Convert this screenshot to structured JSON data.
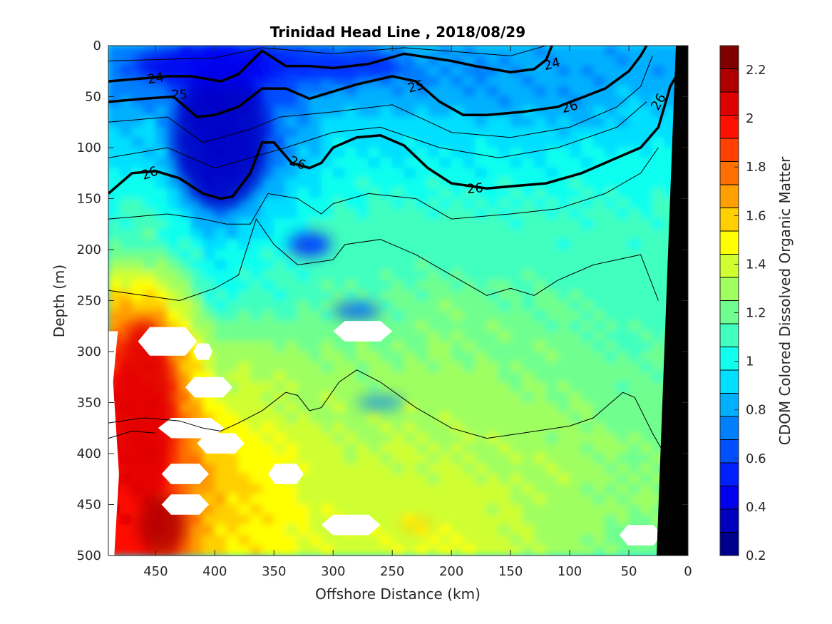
{
  "chart_data": {
    "type": "heatmap",
    "title": "Trinidad Head Line , 2018/08/29",
    "xlabel": "Offshore Distance (km)",
    "ylabel": "Depth (m)",
    "colorbar_label": "CDOM Colored Dissolved Organic Matter",
    "xlim": [
      490,
      0
    ],
    "ylim": [
      500,
      0
    ],
    "xticks": [
      450,
      400,
      350,
      300,
      250,
      200,
      150,
      100,
      50,
      0
    ],
    "yticks": [
      0,
      50,
      100,
      150,
      200,
      250,
      300,
      350,
      400,
      450,
      500
    ],
    "clim": [
      0.2,
      2.3
    ],
    "colorbar_ticks": [
      0.2,
      0.4,
      0.6,
      0.8,
      1,
      1.2,
      1.4,
      1.6,
      1.8,
      2,
      2.2
    ],
    "colormap": [
      "#00008f",
      "#0000bf",
      "#0000ef",
      "#0020ff",
      "#0050ff",
      "#0080ff",
      "#00b0ff",
      "#00dfff",
      "#10ffef",
      "#40ffbf",
      "#70ff8f",
      "#9fff60",
      "#cfff30",
      "#ffff00",
      "#ffcf00",
      "#ff9f00",
      "#ff7000",
      "#ff4000",
      "#ff1000",
      "#df0000",
      "#af0000",
      "#800000"
    ],
    "approx_depth_profile": {
      "depths": [
        0,
        25,
        50,
        75,
        100,
        125,
        150,
        175,
        200,
        250,
        300,
        350,
        400,
        450,
        500
      ],
      "offshore_450": [
        0.75,
        0.7,
        0.75,
        0.85,
        0.9,
        0.95,
        1.05,
        1.1,
        1.15,
        1.6,
        1.9,
        2.0,
        2.0,
        2.0,
        1.95
      ],
      "offshore_400": [
        0.5,
        0.45,
        0.45,
        0.45,
        0.45,
        0.5,
        0.65,
        0.8,
        0.95,
        1.05,
        1.3,
        1.45,
        1.6,
        1.6,
        1.55
      ],
      "offshore_300": [
        0.75,
        0.75,
        0.8,
        0.9,
        0.95,
        1.0,
        1.05,
        1.1,
        1.1,
        1.15,
        1.25,
        1.3,
        1.35,
        1.4,
        1.4
      ],
      "offshore_200": [
        0.8,
        0.75,
        0.8,
        0.9,
        0.95,
        1.0,
        1.05,
        1.1,
        1.1,
        1.2,
        1.25,
        1.3,
        1.35,
        1.4,
        1.45
      ],
      "offshore_100": [
        0.8,
        0.8,
        0.8,
        0.85,
        0.95,
        1.0,
        1.05,
        1.1,
        1.1,
        1.15,
        1.2,
        1.25,
        1.3,
        1.3,
        1.3
      ],
      "offshore_50": [
        0.8,
        0.8,
        0.85,
        0.9,
        0.95,
        1.0,
        1.05,
        1.1,
        1.1,
        1.1,
        1.15,
        1.2,
        1.25,
        1.25,
        1.2
      ]
    },
    "density_contours": [
      {
        "label": "24",
        "points": [
          [
            490,
            35
          ],
          [
            440,
            30
          ],
          [
            420,
            30
          ],
          [
            395,
            35
          ],
          [
            380,
            28
          ],
          [
            360,
            5
          ],
          [
            340,
            20
          ],
          [
            320,
            20
          ],
          [
            300,
            22
          ],
          [
            270,
            18
          ],
          [
            240,
            8
          ],
          [
            200,
            15
          ],
          [
            180,
            20
          ],
          [
            150,
            26
          ],
          [
            130,
            23
          ],
          [
            120,
            14
          ],
          [
            115,
            0
          ]
        ]
      },
      {
        "label": "25",
        "points": [
          [
            490,
            55
          ],
          [
            460,
            52
          ],
          [
            435,
            50
          ],
          [
            415,
            70
          ],
          [
            400,
            68
          ],
          [
            380,
            60
          ],
          [
            360,
            42
          ],
          [
            340,
            42
          ],
          [
            320,
            52
          ],
          [
            300,
            45
          ],
          [
            280,
            38
          ],
          [
            250,
            30
          ],
          [
            230,
            35
          ],
          [
            210,
            55
          ],
          [
            190,
            68
          ],
          [
            170,
            68
          ],
          [
            140,
            65
          ],
          [
            110,
            60
          ],
          [
            70,
            42
          ],
          [
            50,
            25
          ],
          [
            40,
            10
          ],
          [
            35,
            0
          ]
        ]
      },
      {
        "label": "26",
        "points": [
          [
            490,
            145
          ],
          [
            470,
            125
          ],
          [
            450,
            123
          ],
          [
            430,
            130
          ],
          [
            410,
            145
          ],
          [
            395,
            150
          ],
          [
            385,
            148
          ],
          [
            370,
            125
          ],
          [
            360,
            95
          ],
          [
            350,
            95
          ],
          [
            335,
            115
          ],
          [
            320,
            120
          ],
          [
            310,
            115
          ],
          [
            300,
            100
          ],
          [
            280,
            90
          ],
          [
            260,
            88
          ],
          [
            240,
            98
          ],
          [
            220,
            120
          ],
          [
            200,
            135
          ],
          [
            170,
            140
          ],
          [
            150,
            138
          ],
          [
            120,
            135
          ],
          [
            90,
            125
          ],
          [
            60,
            110
          ],
          [
            40,
            100
          ],
          [
            25,
            80
          ],
          [
            15,
            40
          ],
          [
            5,
            20
          ]
        ]
      }
    ],
    "contour_labels_shown": [
      "24",
      "24",
      "25",
      "25",
      "26",
      "26",
      "26",
      "26"
    ],
    "no_data_regions": "white blobs at approx (440 km, 290 m), (405 km, 335 m), (420 km, 375 m), (395 km, 390 m), (425 km, 420 m), (340 km, 420 m), (425 km, 450 m), (285 km, 470 m), (275 km, 280 m), (40 km, 480 m); white strip along left edge below 280 m",
    "bathymetry": "black wedge at near-shore edge (0–25 km) from the surface to 500 m"
  }
}
